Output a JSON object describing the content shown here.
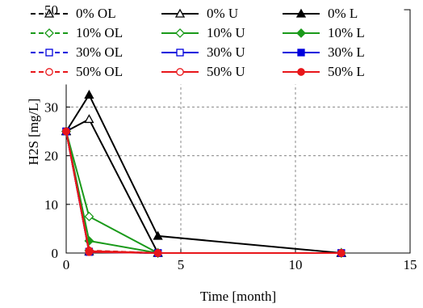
{
  "chart_data": {
    "type": "line",
    "title": "",
    "xlabel": "Time [month]",
    "ylabel": "H2S [mg/L]",
    "xlim": [
      0,
      15
    ],
    "ylim": [
      0,
      50
    ],
    "xticks": [
      "0",
      "5",
      "10",
      "15"
    ],
    "yticks": [
      "0",
      "10",
      "20",
      "30",
      "50"
    ],
    "grid": true,
    "legend_position": "top",
    "series": [
      {
        "name": "0% OL",
        "color": "#000000",
        "dash": "dashed",
        "marker": "open-triangle",
        "x": [
          0,
          1,
          4,
          12
        ],
        "y": [
          25,
          0.3,
          0,
          0
        ]
      },
      {
        "name": "0% U",
        "color": "#000000",
        "dash": "solid",
        "marker": "open-triangle",
        "x": [
          0,
          1,
          4,
          12
        ],
        "y": [
          25,
          27.5,
          0,
          0
        ]
      },
      {
        "name": "0% L",
        "color": "#000000",
        "dash": "solid",
        "marker": "filled-triangle",
        "x": [
          0,
          1,
          4,
          12
        ],
        "y": [
          25,
          32.5,
          3.5,
          0
        ]
      },
      {
        "name": "10% OL",
        "color": "#1a9a1a",
        "dash": "dashed",
        "marker": "open-diamond",
        "x": [
          0,
          1,
          4,
          12
        ],
        "y": [
          25,
          0.5,
          0,
          0
        ]
      },
      {
        "name": "10% U",
        "color": "#1a9a1a",
        "dash": "solid",
        "marker": "open-diamond",
        "x": [
          0,
          1,
          4,
          12
        ],
        "y": [
          25,
          7.5,
          0,
          0
        ]
      },
      {
        "name": "10% L",
        "color": "#1a9a1a",
        "dash": "solid",
        "marker": "filled-diamond",
        "x": [
          0,
          1,
          4,
          12
        ],
        "y": [
          25,
          2.5,
          0,
          0
        ]
      },
      {
        "name": "30% OL",
        "color": "#0000dd",
        "dash": "dashed",
        "marker": "open-square",
        "x": [
          0,
          1,
          4,
          12
        ],
        "y": [
          25,
          0.3,
          0,
          0
        ]
      },
      {
        "name": "30% U",
        "color": "#0000dd",
        "dash": "solid",
        "marker": "open-square",
        "x": [
          0,
          1,
          4,
          12
        ],
        "y": [
          25,
          0.3,
          0,
          0
        ]
      },
      {
        "name": "30% L",
        "color": "#0000dd",
        "dash": "solid",
        "marker": "filled-square",
        "x": [
          0,
          1,
          4,
          12
        ],
        "y": [
          25,
          0.2,
          0,
          0
        ]
      },
      {
        "name": "50% OL",
        "color": "#e8161a",
        "dash": "dashed",
        "marker": "open-circle",
        "x": [
          0,
          1,
          4,
          12
        ],
        "y": [
          25,
          0.5,
          0,
          0
        ]
      },
      {
        "name": "50% U",
        "color": "#e8161a",
        "dash": "solid",
        "marker": "open-circle",
        "x": [
          0,
          1,
          4,
          12
        ],
        "y": [
          25,
          0.4,
          0,
          0
        ]
      },
      {
        "name": "50% L",
        "color": "#e8161a",
        "dash": "solid",
        "marker": "filled-circle",
        "x": [
          0,
          1,
          4,
          12
        ],
        "y": [
          25,
          0.2,
          0,
          0
        ]
      }
    ]
  }
}
